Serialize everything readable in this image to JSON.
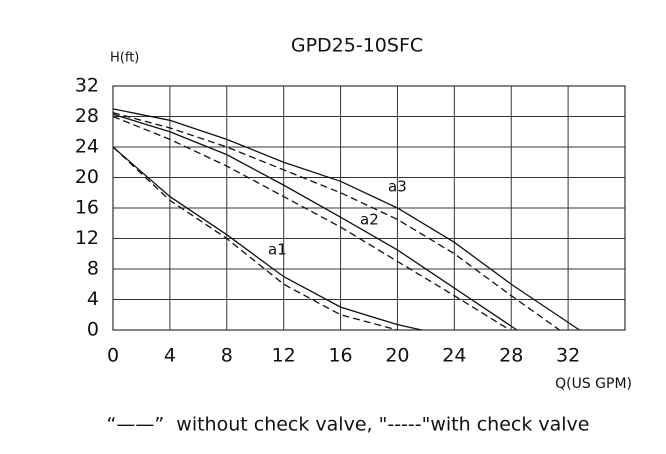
{
  "chart_data": {
    "type": "line",
    "title": "GPD25-10SFC",
    "y_label": "H(ft)",
    "x_label": "Q(US GPM)",
    "note": "“——”  without check valve, \"-----\"with check valve",
    "xlim": [
      0,
      36
    ],
    "ylim": [
      0,
      32
    ],
    "xticks": [
      0,
      4,
      8,
      12,
      16,
      20,
      24,
      28,
      32
    ],
    "yticks": [
      0,
      4,
      8,
      12,
      16,
      20,
      24,
      28,
      32
    ],
    "grid": true,
    "color": "#111111",
    "series": [
      {
        "name": "a1",
        "style": "solid",
        "x": [
          0,
          4,
          8,
          12,
          16,
          20,
          21.7
        ],
        "values": [
          24,
          17.5,
          12.5,
          7,
          3,
          0.7,
          0
        ]
      },
      {
        "style": "dashed",
        "x": [
          0,
          4,
          8,
          12,
          16,
          20
        ],
        "values": [
          24,
          17,
          12,
          6,
          2,
          0
        ]
      },
      {
        "name": "a2",
        "style": "solid",
        "x": [
          0,
          4,
          8,
          12,
          16,
          20,
          24,
          28.4
        ],
        "values": [
          28.3,
          26,
          23,
          19,
          14.8,
          10.5,
          5.5,
          0
        ]
      },
      {
        "style": "dashed",
        "x": [
          0,
          4,
          8,
          12,
          16,
          20,
          24,
          27.9
        ],
        "values": [
          28,
          25,
          21.5,
          17.5,
          13.5,
          9,
          4.5,
          0
        ]
      },
      {
        "name": "a3",
        "style": "solid",
        "x": [
          0,
          4,
          8,
          12,
          16,
          20,
          24,
          28,
          32.8
        ],
        "values": [
          29,
          27.5,
          25,
          22,
          19.5,
          16,
          11.5,
          6,
          0
        ]
      },
      {
        "style": "dashed",
        "x": [
          0,
          4,
          8,
          12,
          16,
          20,
          24,
          28,
          31.4
        ],
        "values": [
          28.5,
          26.5,
          24,
          21,
          18,
          14.5,
          10,
          4.5,
          0
        ]
      }
    ]
  }
}
